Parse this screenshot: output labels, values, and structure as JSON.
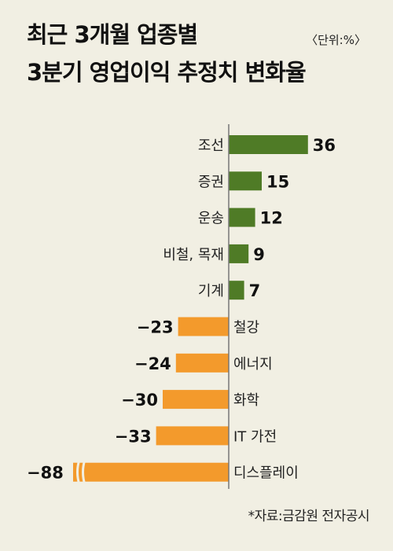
{
  "title_lines": [
    "최근 3개월 업종별",
    "3분기 영업이익 추정치 변화율"
  ],
  "unit": "〈단위:%〉",
  "source": "*자료:금감원 전자공시",
  "colors": {
    "positive": "#4f7b26",
    "negative": "#f39a2c",
    "axis": "#777777"
  },
  "chart_data": {
    "type": "bar",
    "orientation": "horizontal",
    "categories": [
      "조선",
      "증권",
      "운송",
      "비철, 목재",
      "기계",
      "철강",
      "에너지",
      "화학",
      "IT 가전",
      "디스플레이"
    ],
    "values": [
      36,
      15,
      12,
      9,
      7,
      -23,
      -24,
      -30,
      -33,
      -88
    ],
    "value_labels": [
      "36",
      "15",
      "12",
      "9",
      "7",
      "−23",
      "−24",
      "−30",
      "−33",
      "−88"
    ],
    "broken_axis_category": "디스플레이"
  }
}
